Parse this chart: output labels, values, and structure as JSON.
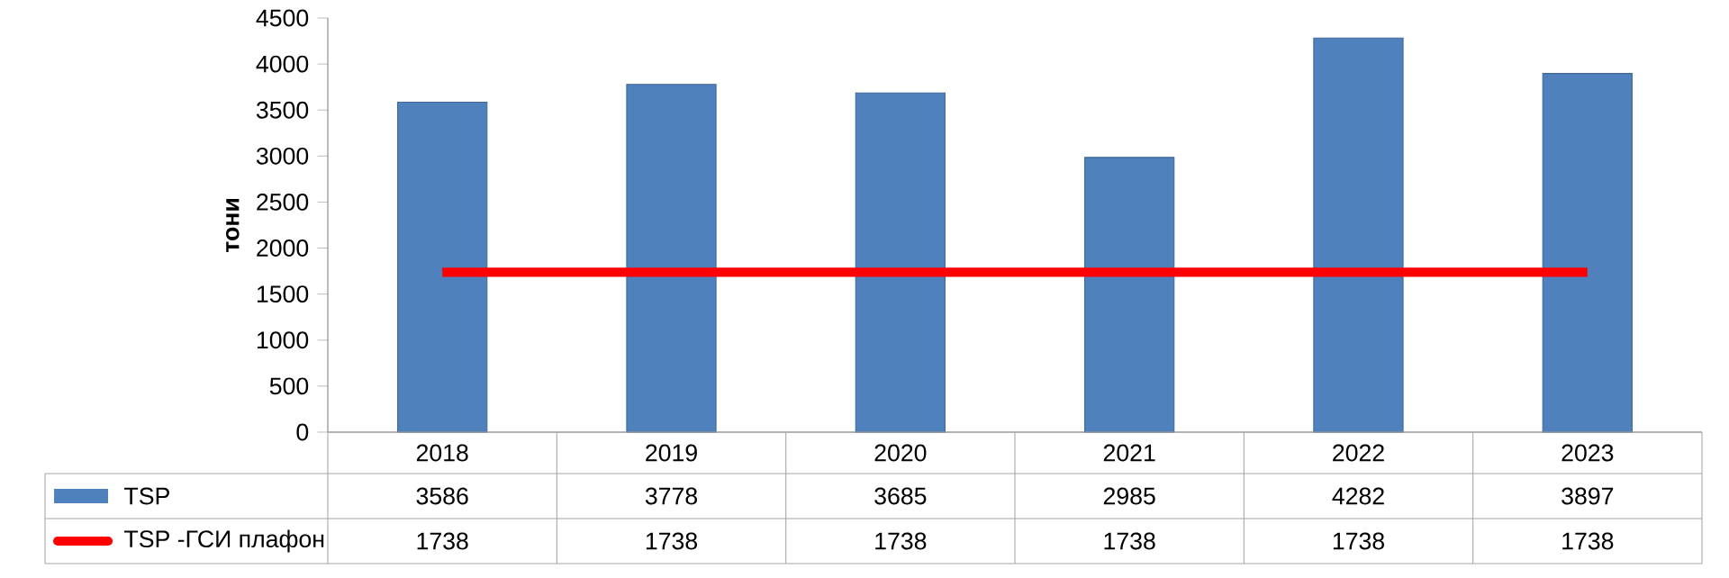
{
  "chart_data": {
    "type": "bar",
    "ylabel": "тони",
    "categories": [
      "2018",
      "2019",
      "2020",
      "2021",
      "2022",
      "2023"
    ],
    "series": [
      {
        "name": "TSP",
        "color": "#4f81bd",
        "values": [
          3586,
          3778,
          3685,
          2985,
          4282,
          3897
        ]
      },
      {
        "name": "TSP -ГСИ плафон",
        "type": "line",
        "color": "#ff0000",
        "values": [
          1738,
          1738,
          1738,
          1738,
          1738,
          1738
        ]
      }
    ],
    "ylim": [
      0,
      4500
    ],
    "yticks": [
      0,
      500,
      1000,
      1500,
      2000,
      2500,
      3000,
      3500,
      4000,
      4500
    ],
    "data_labels": true,
    "legend": "bottom"
  }
}
